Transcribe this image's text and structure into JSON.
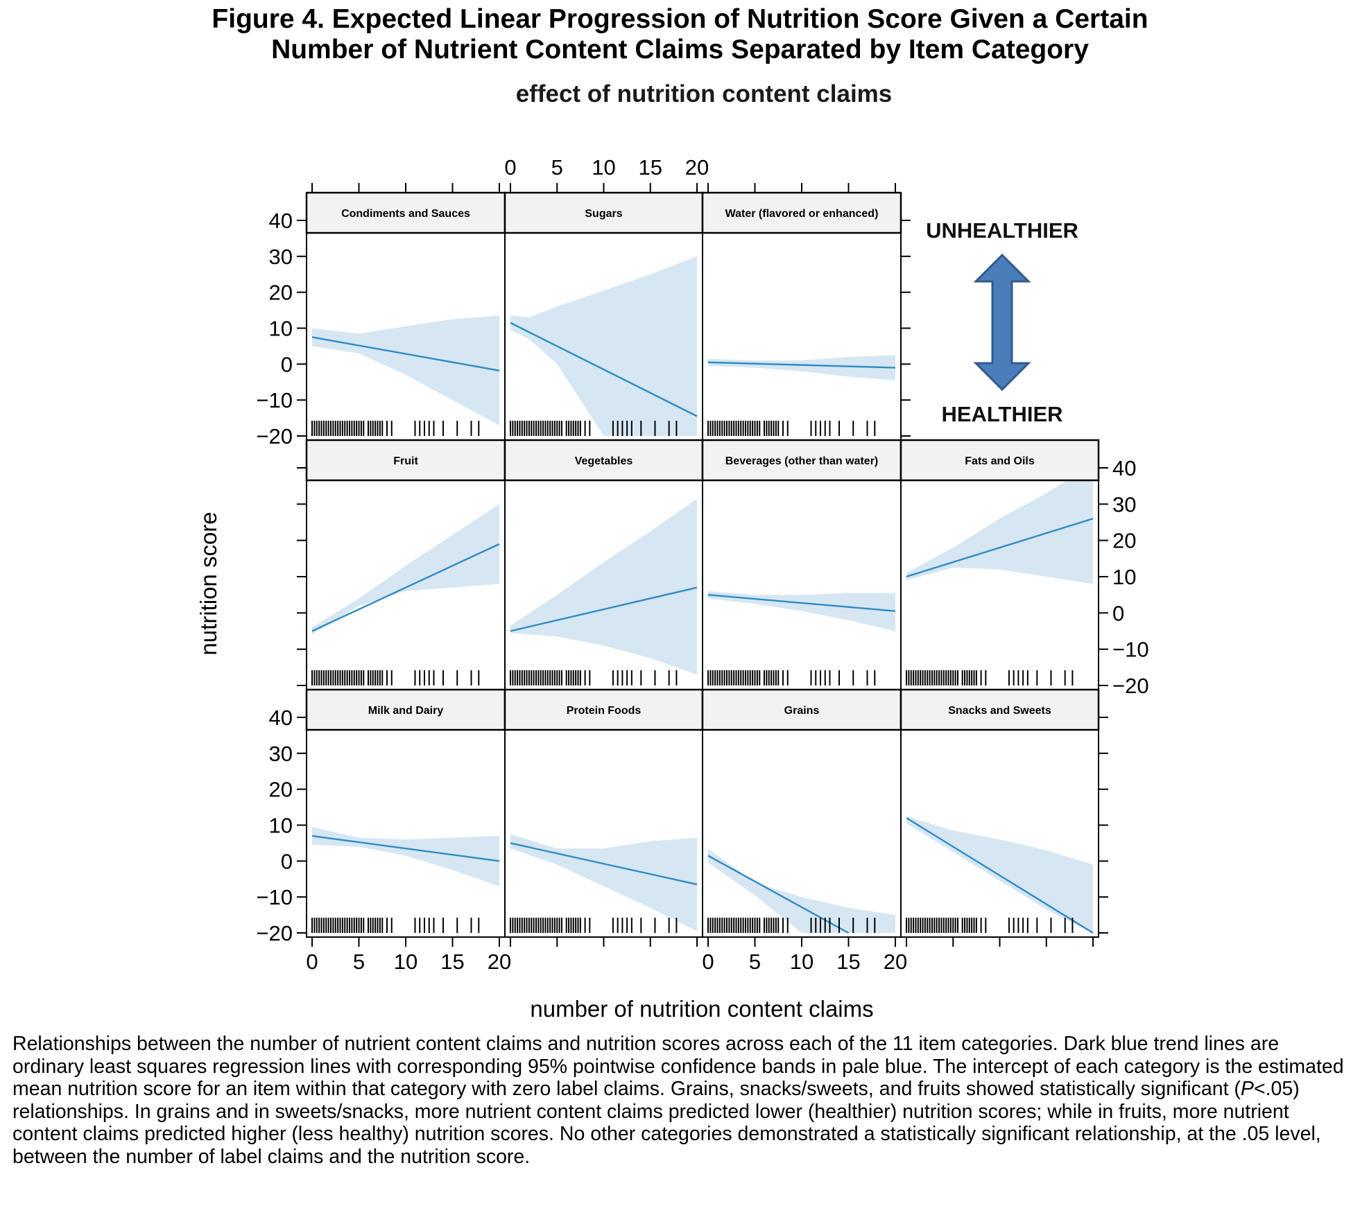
{
  "figure": {
    "title_line1": "Figure 4. Expected Linear Progression of Nutrition Score Given a Certain",
    "title_line2": "Number of Nutrient Content Claims Separated by Item Category",
    "caption_part1": "Relationships between the number of nutrient content claims and nutrition scores across each of the 11 item categories. Dark blue trend lines are ordinary least squares regression lines with corresponding 95% pointwise confidence bands in pale blue. The intercept of each category is the estimated mean nutrition score for an item within that category with zero label claims. Grains, snacks/sweets, and fruits showed statistically significant (",
    "caption_italic": "P",
    "caption_part2": "<.05) relationships. In grains and in sweets/snacks, more nutrient content claims predicted lower (healthier) nutrition scores; while in fruits, more nutrient content claims predicted higher (less healthy) nutrition scores. No other categories demonstrated a statistically significant relationship, at the .05 level, between the number of label claims and the nutrition score."
  },
  "chart_data": {
    "type": "line",
    "title": "effect of nutrition content claims",
    "xlabel": "number of nutrition content claims",
    "ylabel": "nutrition score",
    "xlim": [
      0,
      20
    ],
    "ylim": [
      -20,
      40
    ],
    "x_ticks": [
      0,
      5,
      10,
      15,
      20
    ],
    "y_ticks": [
      -20,
      -10,
      0,
      10,
      20,
      30,
      40
    ],
    "rug_x": [
      0,
      0.25,
      0.5,
      0.75,
      1,
      1.25,
      1.5,
      1.75,
      2,
      2.25,
      2.5,
      2.75,
      3,
      3.25,
      3.5,
      3.75,
      4,
      4.25,
      4.5,
      4.75,
      5,
      5.25,
      5.5,
      6,
      6.25,
      6.5,
      6.75,
      7,
      7.25,
      7.5,
      8,
      8.5,
      11,
      11.5,
      12,
      12.5,
      13,
      14,
      15.5,
      17,
      17.8
    ],
    "annotations": {
      "top": "UNHEALTHIER",
      "bottom": "HEALTHIER"
    },
    "panels": [
      {
        "name": "Condiments and Sauces",
        "row": 0,
        "col": 0,
        "line": [
          [
            0,
            7.5
          ],
          [
            20,
            -1.8
          ]
        ],
        "band_upper": [
          [
            0,
            10
          ],
          [
            5,
            8.5
          ],
          [
            10,
            10.5
          ],
          [
            15,
            12.5
          ],
          [
            20,
            13.5
          ]
        ],
        "band_lower": [
          [
            0,
            5
          ],
          [
            5,
            3
          ],
          [
            10,
            -3
          ],
          [
            15,
            -10
          ],
          [
            20,
            -17
          ]
        ]
      },
      {
        "name": "Sugars",
        "row": 0,
        "col": 1,
        "line": [
          [
            0,
            11.5
          ],
          [
            20,
            -14.5
          ]
        ],
        "band_upper": [
          [
            0,
            13.5
          ],
          [
            2,
            13
          ],
          [
            5,
            16
          ],
          [
            10,
            20.5
          ],
          [
            15,
            25
          ],
          [
            20,
            30
          ]
        ],
        "band_lower": [
          [
            0,
            9.5
          ],
          [
            2,
            7
          ],
          [
            5,
            0
          ],
          [
            8,
            -12
          ],
          [
            10,
            -20
          ],
          [
            20,
            -20
          ]
        ]
      },
      {
        "name": "Water (flavored or enhanced)",
        "row": 0,
        "col": 2,
        "line": [
          [
            0,
            0.5
          ],
          [
            20,
            -1
          ]
        ],
        "band_upper": [
          [
            0,
            1.5
          ],
          [
            5,
            1
          ],
          [
            10,
            1
          ],
          [
            15,
            2
          ],
          [
            20,
            2.5
          ]
        ],
        "band_lower": [
          [
            0,
            -0.5
          ],
          [
            5,
            -1
          ],
          [
            10,
            -2
          ],
          [
            15,
            -3.5
          ],
          [
            20,
            -4.5
          ]
        ]
      },
      {
        "name": "Fruit",
        "row": 1,
        "col": 0,
        "line": [
          [
            0,
            -5
          ],
          [
            20,
            19
          ]
        ],
        "band_upper": [
          [
            0,
            -4
          ],
          [
            5,
            4
          ],
          [
            10,
            13
          ],
          [
            15,
            21.5
          ],
          [
            20,
            30
          ]
        ],
        "band_lower": [
          [
            0,
            -6
          ],
          [
            5,
            2
          ],
          [
            10,
            6
          ],
          [
            15,
            7
          ],
          [
            20,
            8
          ]
        ]
      },
      {
        "name": "Vegetables",
        "row": 1,
        "col": 1,
        "line": [
          [
            0,
            -5
          ],
          [
            20,
            7
          ]
        ],
        "band_upper": [
          [
            0,
            -3.5
          ],
          [
            5,
            5
          ],
          [
            10,
            14
          ],
          [
            15,
            22.5
          ],
          [
            20,
            31.5
          ]
        ],
        "band_lower": [
          [
            0,
            -5.5
          ],
          [
            5,
            -6.5
          ],
          [
            10,
            -9
          ],
          [
            15,
            -12.5
          ],
          [
            20,
            -17
          ]
        ]
      },
      {
        "name": "Beverages (other than water)",
        "row": 1,
        "col": 2,
        "line": [
          [
            0,
            5
          ],
          [
            20,
            0.5
          ]
        ],
        "band_upper": [
          [
            0,
            6
          ],
          [
            5,
            5
          ],
          [
            10,
            5
          ],
          [
            15,
            5.5
          ],
          [
            20,
            5.5
          ]
        ],
        "band_lower": [
          [
            0,
            4
          ],
          [
            5,
            2.5
          ],
          [
            10,
            0.5
          ],
          [
            15,
            -2
          ],
          [
            20,
            -5
          ]
        ]
      },
      {
        "name": "Fats and Oils",
        "row": 1,
        "col": 3,
        "line": [
          [
            0,
            10
          ],
          [
            20,
            26
          ]
        ],
        "band_upper": [
          [
            0,
            11
          ],
          [
            5,
            18
          ],
          [
            10,
            26
          ],
          [
            15,
            33
          ],
          [
            20,
            41
          ]
        ],
        "band_lower": [
          [
            0,
            9
          ],
          [
            5,
            12.5
          ],
          [
            10,
            12
          ],
          [
            15,
            10
          ],
          [
            20,
            8
          ]
        ]
      },
      {
        "name": "Milk and Dairy",
        "row": 2,
        "col": 0,
        "line": [
          [
            0,
            7
          ],
          [
            20,
            0
          ]
        ],
        "band_upper": [
          [
            0,
            9.5
          ],
          [
            5,
            6.5
          ],
          [
            10,
            6
          ],
          [
            15,
            6.5
          ],
          [
            20,
            7
          ]
        ],
        "band_lower": [
          [
            0,
            4.5
          ],
          [
            5,
            4
          ],
          [
            10,
            1.5
          ],
          [
            15,
            -2.5
          ],
          [
            20,
            -7
          ]
        ]
      },
      {
        "name": "Protein Foods",
        "row": 2,
        "col": 1,
        "line": [
          [
            0,
            5
          ],
          [
            20,
            -6.5
          ]
        ],
        "band_upper": [
          [
            0,
            7.5
          ],
          [
            5,
            3.5
          ],
          [
            10,
            3.5
          ],
          [
            15,
            5.5
          ],
          [
            20,
            6.5
          ]
        ],
        "band_lower": [
          [
            0,
            3.5
          ],
          [
            5,
            -1
          ],
          [
            10,
            -7
          ],
          [
            15,
            -13
          ],
          [
            20,
            -19.5
          ]
        ]
      },
      {
        "name": "Grains",
        "row": 2,
        "col": 2,
        "line": [
          [
            0,
            1.5
          ],
          [
            15,
            -20
          ]
        ],
        "band_upper": [
          [
            0,
            3.5
          ],
          [
            5,
            -6
          ],
          [
            10,
            -10
          ],
          [
            15,
            -13
          ],
          [
            20,
            -15
          ]
        ],
        "band_lower": [
          [
            0,
            -0.5
          ],
          [
            5,
            -9.5
          ],
          [
            10,
            -20
          ],
          [
            20,
            -20
          ]
        ]
      },
      {
        "name": "Snacks and Sweets",
        "row": 2,
        "col": 3,
        "line": [
          [
            0,
            12
          ],
          [
            20,
            -20
          ]
        ],
        "band_upper": [
          [
            0,
            12.5
          ],
          [
            5,
            8.5
          ],
          [
            10,
            6
          ],
          [
            15,
            3
          ],
          [
            20,
            -1
          ]
        ],
        "band_lower": [
          [
            0,
            10.5
          ],
          [
            5,
            2.5
          ],
          [
            10,
            -5.5
          ],
          [
            15,
            -13.5
          ],
          [
            20,
            -20
          ]
        ]
      }
    ]
  },
  "style": {
    "band_color": "#d6e7f3",
    "line_color": "#2f8ac4",
    "strip_color": "#f2f2f2",
    "arrow_fill": "#4a7ebb",
    "arrow_stroke": "#2f5a8e"
  }
}
